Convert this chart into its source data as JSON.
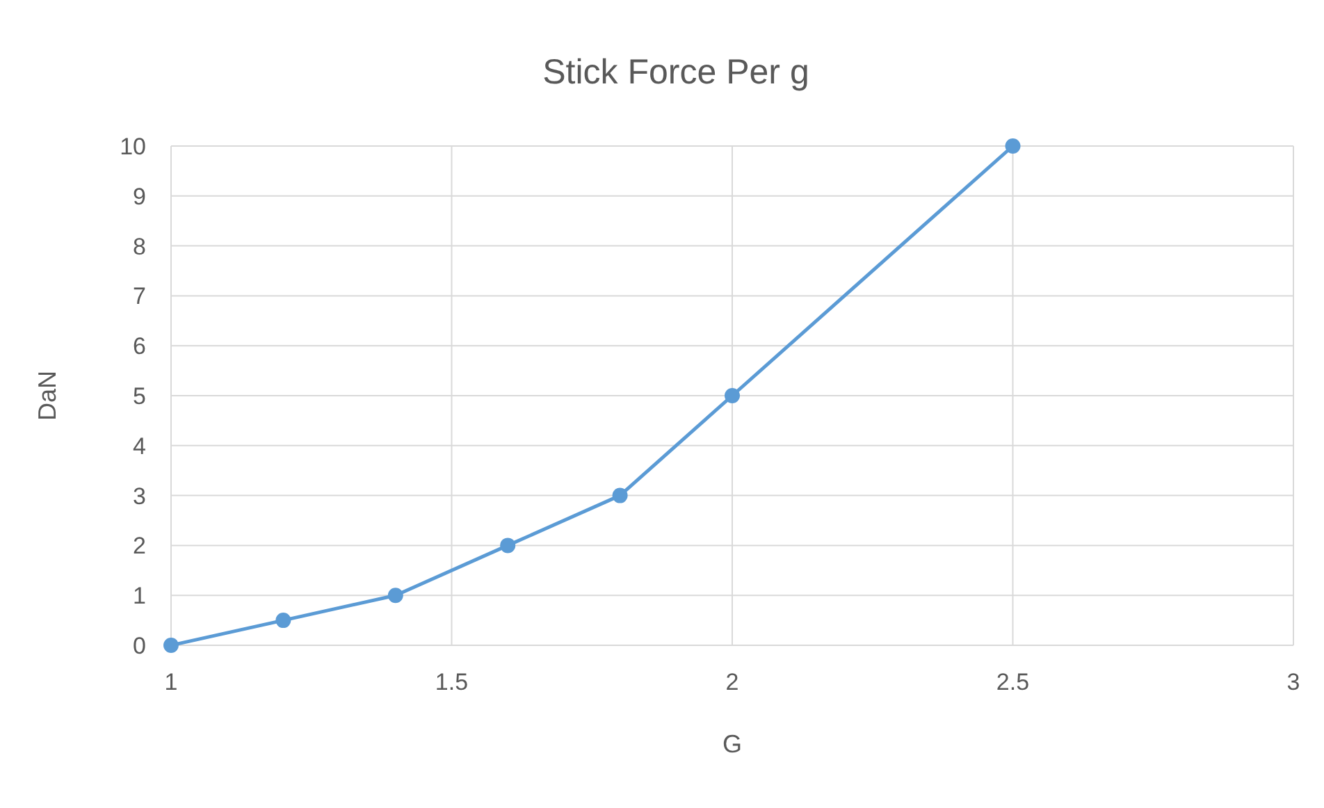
{
  "chart_data": {
    "type": "line",
    "title": "Stick Force Per g",
    "xlabel": "G",
    "ylabel": "DaN",
    "x": [
      1,
      1.2,
      1.4,
      1.6,
      1.8,
      2,
      2.5
    ],
    "series": [
      {
        "color": "#5b9bd5",
        "values": [
          0,
          0.5,
          1,
          2,
          3,
          5,
          10
        ]
      }
    ],
    "xlim": [
      1,
      3
    ],
    "xticks": [
      1,
      1.5,
      2,
      2.5,
      3
    ],
    "ylim": [
      0,
      10
    ],
    "yticks": [
      0,
      1,
      2,
      3,
      4,
      5,
      6,
      7,
      8,
      9,
      10
    ],
    "grid": true,
    "marker": "circle",
    "line_style": "solid"
  }
}
